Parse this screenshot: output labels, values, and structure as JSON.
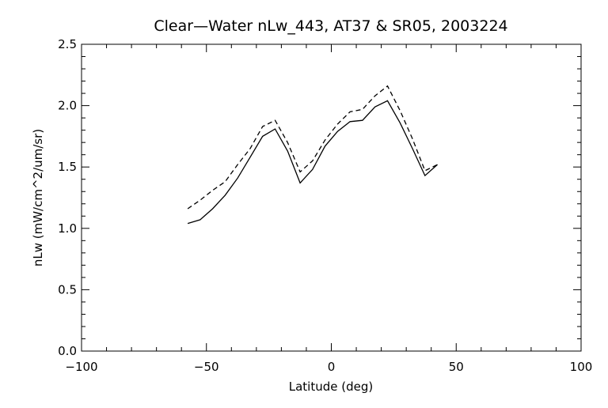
{
  "chart_data": {
    "type": "line",
    "title": "Clear—Water nLw_443, AT37 & SR05, 2003224",
    "xlabel": "Latitude (deg)",
    "ylabel": "nLw (mW/cm^2/um/sr)",
    "xlim": [
      -100,
      100
    ],
    "ylim": [
      0.0,
      2.5
    ],
    "xticks": [
      -100,
      -50,
      0,
      50,
      100
    ],
    "xtick_labels": [
      "−100",
      "−50",
      "0",
      "50",
      "100"
    ],
    "yticks": [
      0.0,
      0.5,
      1.0,
      1.5,
      2.0,
      2.5
    ],
    "ytick_labels": [
      "0.0",
      "0.5",
      "1.0",
      "1.5",
      "2.0",
      "2.5"
    ],
    "grid": false,
    "legend": "none",
    "series": [
      {
        "style": "solid",
        "color": "#000000",
        "x": [
          -57.5,
          -52.5,
          -47.5,
          -42.5,
          -37.5,
          -32.5,
          -27.5,
          -22.5,
          -17.5,
          -12.5,
          -7.5,
          -2.5,
          2.5,
          7.5,
          12.5,
          17.5,
          22.5,
          27.5,
          32.5,
          37.5,
          42.5
        ],
        "values": [
          1.04,
          1.07,
          1.16,
          1.27,
          1.41,
          1.58,
          1.75,
          1.81,
          1.63,
          1.37,
          1.48,
          1.67,
          1.79,
          1.87,
          1.88,
          1.99,
          2.04,
          1.86,
          1.65,
          1.43,
          1.52
        ]
      },
      {
        "style": "dashed",
        "color": "#000000",
        "x": [
          -57.5,
          -52.5,
          -47.5,
          -42.5,
          -37.5,
          -32.5,
          -27.5,
          -22.5,
          -17.5,
          -12.5,
          -7.5,
          -2.5,
          2.5,
          7.5,
          12.5,
          17.5,
          22.5,
          27.5,
          32.5,
          37.5,
          42.5
        ],
        "values": [
          1.16,
          1.23,
          1.31,
          1.38,
          1.52,
          1.65,
          1.83,
          1.88,
          1.7,
          1.46,
          1.55,
          1.72,
          1.85,
          1.95,
          1.97,
          2.08,
          2.16,
          1.96,
          1.73,
          1.47,
          1.52
        ]
      }
    ]
  }
}
